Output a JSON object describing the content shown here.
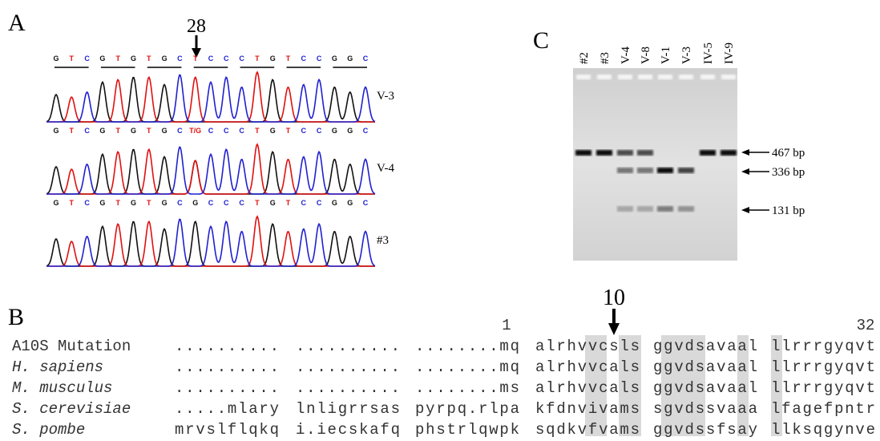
{
  "panel_a": {
    "label": "A",
    "position_label": "28",
    "rows": [
      {
        "sequence": [
          "G",
          "T",
          "C",
          "G",
          "T",
          "G",
          "T",
          "G",
          "C",
          "T",
          "C",
          "C",
          "C",
          "T",
          "G",
          "T",
          "C",
          "C",
          "G",
          "G",
          "C"
        ],
        "label": "V-3"
      },
      {
        "sequence": [
          "G",
          "T",
          "C",
          "G",
          "T",
          "G",
          "T",
          "G",
          "C",
          "T/G",
          "C",
          "C",
          "C",
          "T",
          "G",
          "T",
          "C",
          "C",
          "G",
          "G",
          "C"
        ],
        "label": "V-4"
      },
      {
        "sequence": [
          "G",
          "T",
          "C",
          "G",
          "T",
          "G",
          "T",
          "G",
          "C",
          "G",
          "C",
          "C",
          "C",
          "T",
          "G",
          "T",
          "C",
          "C",
          "G",
          "G",
          "C"
        ],
        "label": "#3"
      }
    ]
  },
  "panel_c": {
    "label": "C",
    "lanes": [
      "#2",
      "#3",
      "V-4",
      "V-8",
      "V-1",
      "V-3",
      "IV-5",
      "IV-9"
    ],
    "markers": [
      "467 bp",
      "336 bp",
      "131 bp"
    ]
  },
  "panel_b": {
    "label": "B",
    "position_label": "10",
    "start": "1",
    "end": "32",
    "rows": [
      {
        "name": "A10S Mutation",
        "blocks": [
          "..........",
          "..........",
          "........mq",
          "alrhvvcsls",
          "ggvdsavaal",
          "llrrrgyqvt"
        ]
      },
      {
        "name": "H. sapiens",
        "blocks": [
          "..........",
          "..........",
          "........mq",
          "alrhvvcals",
          "ggvdsavaal",
          "llrrrgyqvt"
        ]
      },
      {
        "name": "M. musculus",
        "blocks": [
          "..........",
          "..........",
          "........ms",
          "alrhvvcals",
          "ggvdsavaal",
          "llrrrgyqvt"
        ]
      },
      {
        "name": "S. cerevisiae",
        "blocks": [
          ".....mlary",
          "lnligrrsas",
          "pyrpq.rlpa",
          "kfdnvivams",
          "sgvdssvaaa",
          "lfagefpntr"
        ]
      },
      {
        "name": "S. pombe",
        "blocks": [
          "mrvslflqkq",
          "i.iecskafq",
          "phstrlqwpk",
          "sqdkvfvams",
          "ggvdssfsay",
          "llksqgynve"
        ]
      }
    ]
  }
}
